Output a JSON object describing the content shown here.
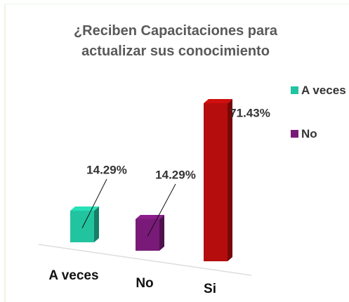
{
  "chart_data": {
    "type": "bar3d",
    "title": "¿Reciben Capacitaciones para actualizar sus conocimiento",
    "categories": [
      "A veces",
      "No",
      "Si"
    ],
    "values": [
      14.29,
      14.29,
      71.43
    ],
    "value_labels": [
      "14.29%",
      "14.29%",
      "71.43%"
    ],
    "colors": [
      "#22c4a0",
      "#7a1a78",
      "#b50d0d"
    ],
    "ylim": [
      0,
      80
    ],
    "legend": [
      {
        "name": "A veces",
        "color": "#22c4a0"
      },
      {
        "name": "No",
        "color": "#7a1a78"
      }
    ]
  }
}
